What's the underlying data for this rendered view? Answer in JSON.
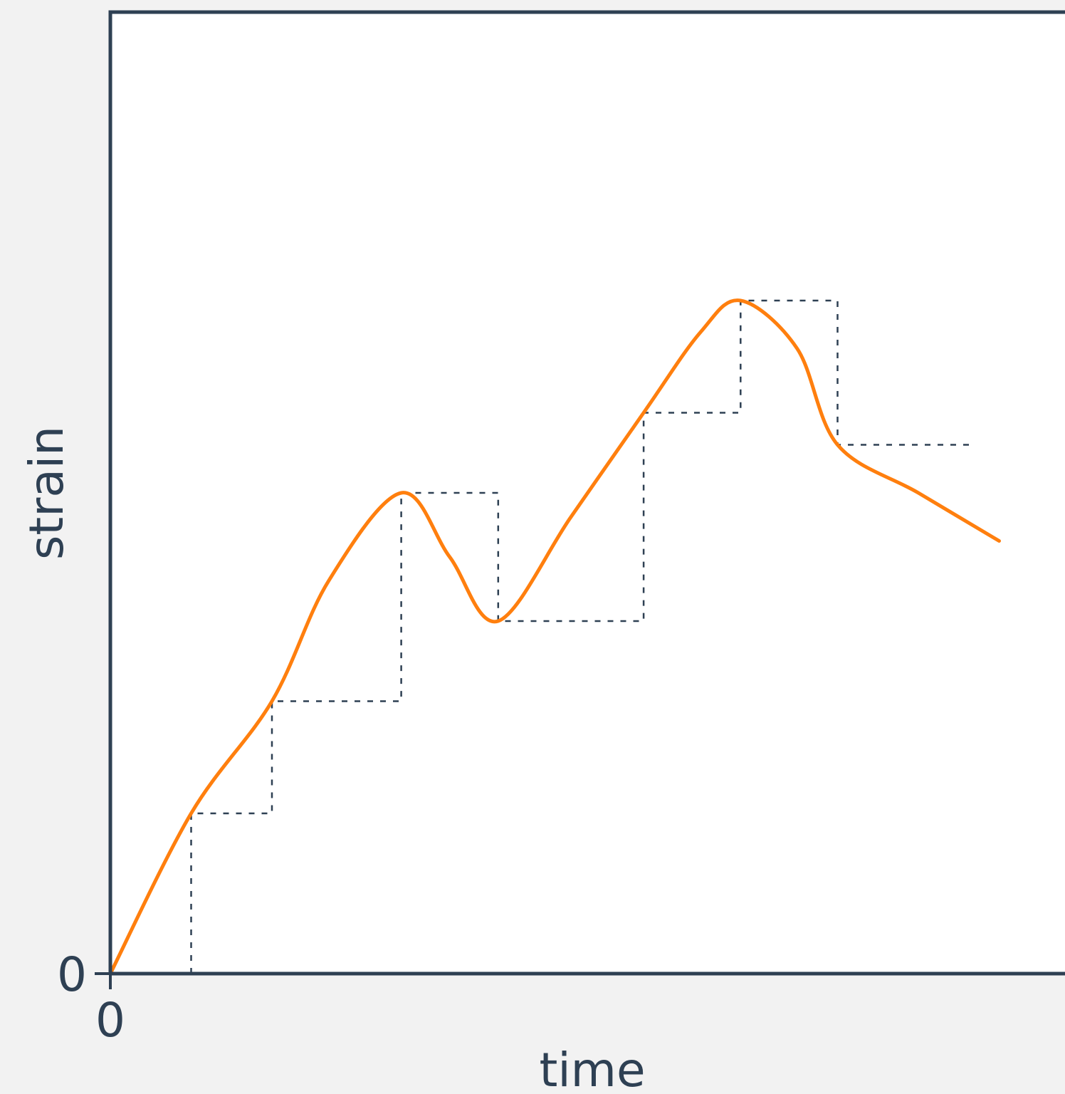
{
  "chart_data": {
    "type": "line",
    "title": "",
    "xlabel": "time",
    "ylabel": "strain",
    "x_ticks": [
      "0"
    ],
    "y_ticks": [
      "0"
    ],
    "xlim": [
      0,
      11
    ],
    "ylim": [
      0,
      12
    ],
    "grid": false,
    "legend": "none",
    "colors": {
      "axis": "#2e4053",
      "curve": "#ff7f0e",
      "plot_background": "#ffffff",
      "page_background": "#f2f2f2"
    },
    "series": [
      {
        "style": "dashed-step",
        "color": "#2e4053",
        "x": [
          1.0,
          1.0,
          2.0,
          2.0,
          3.6,
          3.6,
          4.8,
          4.8,
          6.6,
          6.6,
          7.8,
          7.8,
          9.0,
          9.0,
          10.7
        ],
        "y": [
          0.0,
          2.0,
          2.0,
          3.4,
          3.4,
          6.0,
          6.0,
          4.4,
          4.4,
          7.0,
          7.0,
          8.4,
          8.4,
          6.6,
          6.6
        ]
      },
      {
        "style": "solid-smooth",
        "color": "#ff7f0e",
        "x": [
          0.0,
          1.0,
          2.0,
          2.7,
          3.6,
          4.2,
          4.8,
          5.7,
          6.6,
          7.3,
          7.8,
          8.5,
          9.0,
          10.0,
          11.0
        ],
        "y": [
          0.0,
          2.0,
          3.4,
          4.9,
          6.0,
          5.2,
          4.4,
          5.7,
          7.0,
          8.0,
          8.4,
          7.8,
          6.6,
          6.0,
          5.4
        ]
      }
    ]
  }
}
